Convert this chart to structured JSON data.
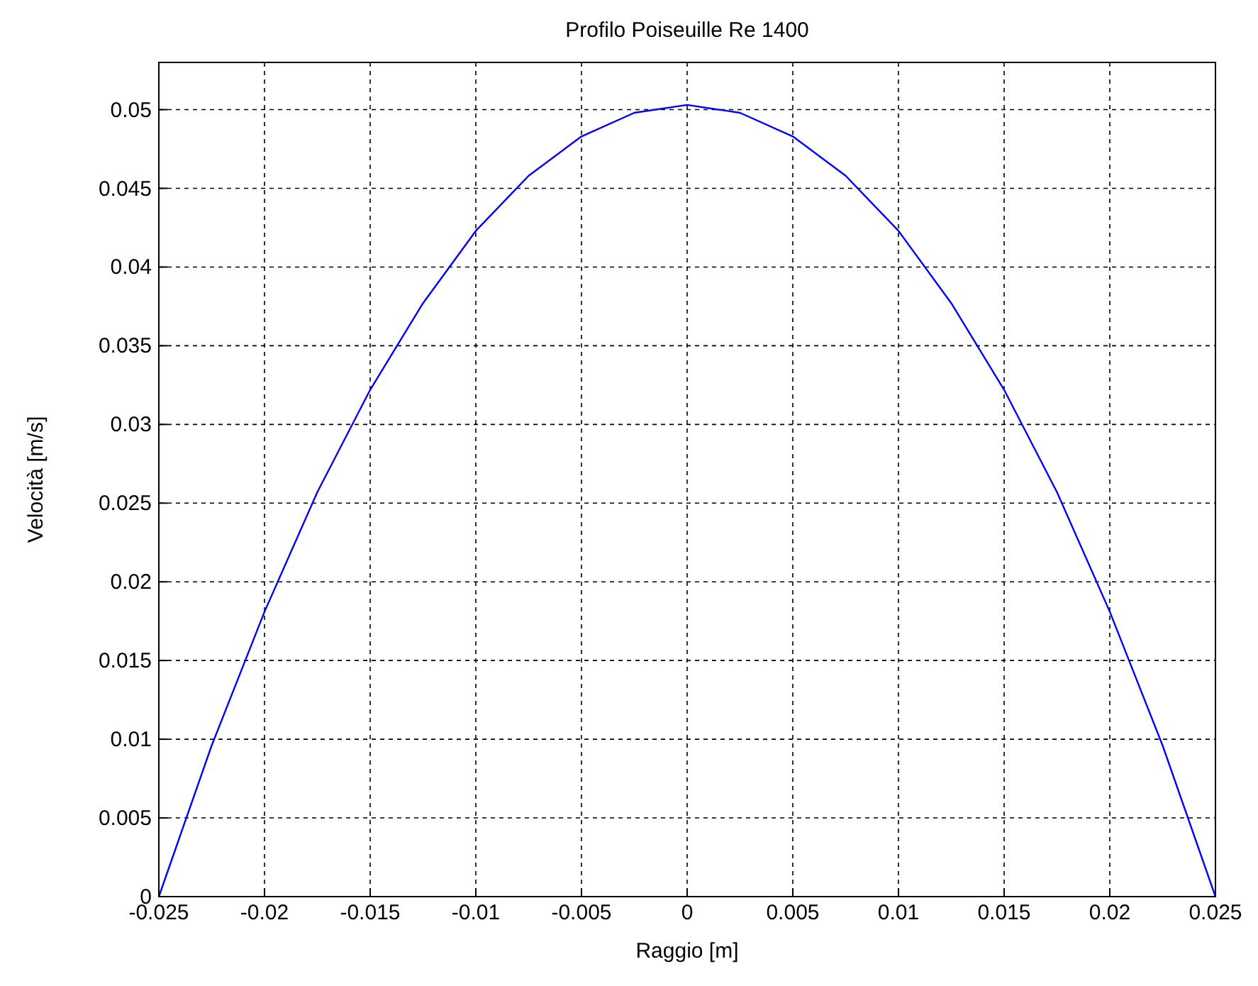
{
  "chart_data": {
    "type": "line",
    "title": "Profilo Poiseuille Re 1400",
    "xlabel": "Raggio [m]",
    "ylabel": "Velocità [m/s]",
    "x": [
      -0.025,
      -0.0225,
      -0.02,
      -0.0175,
      -0.015,
      -0.0125,
      -0.01,
      -0.0075,
      -0.005,
      -0.0025,
      0,
      0.0025,
      0.005,
      0.0075,
      0.01,
      0.0125,
      0.015,
      0.0175,
      0.02,
      0.0225,
      0.025
    ],
    "series": [
      {
        "color": "#0000ff",
        "values": [
          0,
          0.0096,
          0.0181,
          0.0257,
          0.0322,
          0.0377,
          0.0423,
          0.0458,
          0.0483,
          0.0498,
          0.0503,
          0.0498,
          0.0483,
          0.0458,
          0.0423,
          0.0377,
          0.0322,
          0.0257,
          0.0181,
          0.0096,
          0
        ]
      }
    ],
    "xlim": [
      -0.025,
      0.025
    ],
    "xticks": [
      -0.025,
      -0.02,
      -0.015,
      -0.01,
      -0.005,
      0,
      0.005,
      0.01,
      0.015,
      0.02,
      0.025
    ],
    "ylim": [
      0,
      0.053
    ],
    "yticks": [
      0,
      0.005,
      0.01,
      0.015,
      0.02,
      0.025,
      0.03,
      0.035,
      0.04,
      0.045,
      0.05
    ],
    "grid": true,
    "line_style": "solid"
  }
}
